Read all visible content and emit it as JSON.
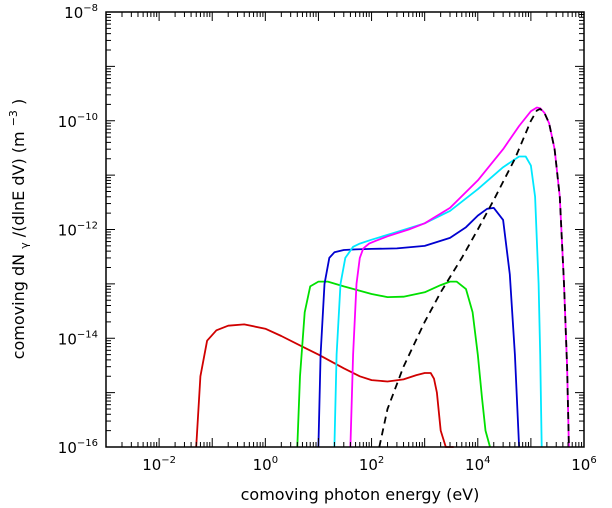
{
  "chart_data": {
    "type": "line",
    "title": "",
    "xlabel": "comoving photon energy (eV)",
    "ylabel": {
      "prefix": "comoving dN",
      "sub": "γ",
      "mid": "/(dlnE dV) (m",
      "sup": "−3",
      "suffix": ")"
    },
    "x_scale": "log",
    "y_scale": "log",
    "xlim": [
      0.001,
      1000000
    ],
    "ylim": [
      1e-16,
      1e-08
    ],
    "x_ticks": [
      {
        "value": 0.01,
        "base": "10",
        "exp": "−2"
      },
      {
        "value": 1,
        "base": "10",
        "exp": "0"
      },
      {
        "value": 100,
        "base": "10",
        "exp": "2"
      },
      {
        "value": 10000,
        "base": "10",
        "exp": "4"
      },
      {
        "value": 1000000,
        "base": "10",
        "exp": "6"
      }
    ],
    "y_ticks": [
      {
        "value": 1e-16,
        "base": "10",
        "exp": "−16"
      },
      {
        "value": 1e-14,
        "base": "10",
        "exp": "−14"
      },
      {
        "value": 1e-12,
        "base": "10",
        "exp": "−12"
      },
      {
        "value": 1e-10,
        "base": "10",
        "exp": "−10"
      },
      {
        "value": 1e-08,
        "base": "10",
        "exp": "−8"
      }
    ],
    "grid": false,
    "series": [
      {
        "color": "#d00000",
        "dash": "solid",
        "x": [
          0.05,
          0.06,
          0.08,
          0.12,
          0.2,
          0.4,
          1,
          2,
          5,
          10,
          30,
          60,
          100,
          200,
          400,
          700,
          1000,
          1300,
          1500,
          1700,
          2000,
          2500,
          3500
        ],
        "y": [
          1e-16,
          2e-15,
          9e-15,
          1.4e-14,
          1.7e-14,
          1.8e-14,
          1.5e-14,
          1.1e-14,
          7e-15,
          5e-15,
          2.8e-15,
          2e-15,
          1.7e-15,
          1.6e-15,
          1.75e-15,
          2.1e-15,
          2.3e-15,
          2.3e-15,
          1.8e-15,
          1e-15,
          2e-16,
          1e-16,
          1e-16
        ]
      },
      {
        "color": "#00e000",
        "dash": "solid",
        "x": [
          4,
          4.5,
          5.5,
          7,
          10,
          15,
          30,
          100,
          200,
          400,
          1000,
          2000,
          3000,
          4000,
          6000,
          8000,
          10000,
          12000,
          14000,
          17000
        ],
        "y": [
          1e-16,
          2e-15,
          3e-14,
          9e-14,
          1.1e-13,
          1.1e-13,
          9e-14,
          6.5e-14,
          5.7e-14,
          5.8e-14,
          7e-14,
          9.5e-14,
          1.1e-13,
          1.1e-13,
          8e-14,
          3e-14,
          5e-15,
          8e-16,
          2e-16,
          1e-16
        ]
      },
      {
        "color": "#0000d0",
        "dash": "solid",
        "x": [
          10,
          11,
          13,
          16,
          20,
          30,
          50,
          100,
          300,
          1000,
          3000,
          6000,
          10000,
          15000,
          20000,
          30000,
          40000,
          50000,
          60000
        ],
        "y": [
          1e-16,
          5e-15,
          1e-13,
          3e-13,
          3.8e-13,
          4.2e-13,
          4.3e-13,
          4.4e-13,
          4.5e-13,
          5e-13,
          7e-13,
          1.1e-12,
          1.8e-12,
          2.4e-12,
          2.5e-12,
          1.5e-12,
          1.5e-13,
          5e-15,
          1e-16
        ]
      },
      {
        "color": "#00e8ff",
        "dash": "solid",
        "x": [
          20,
          22,
          26,
          32,
          45,
          60,
          100,
          300,
          1000,
          3000,
          10000,
          30000,
          60000,
          80000,
          100000,
          120000,
          140000,
          150000,
          160000
        ],
        "y": [
          1e-16,
          5e-15,
          1e-13,
          3e-13,
          4.8e-13,
          5.5e-13,
          6.5e-13,
          9e-13,
          1.3e-12,
          2.2e-12,
          5.5e-12,
          1.4e-11,
          2.2e-11,
          2.2e-11,
          1.5e-11,
          4e-12,
          1e-13,
          5e-15,
          1e-16
        ]
      },
      {
        "color": "#ff00ff",
        "dash": "solid",
        "x": [
          40,
          45,
          52,
          60,
          70,
          90,
          120,
          200,
          500,
          1000,
          3000,
          10000,
          30000,
          60000,
          100000,
          130000,
          150000,
          180000,
          220000,
          280000,
          350000,
          420000,
          480000,
          520000
        ],
        "y": [
          1e-16,
          5e-15,
          1e-13,
          3e-13,
          4.5e-13,
          5.5e-13,
          6.2e-13,
          7.5e-13,
          1e-12,
          1.3e-12,
          2.5e-12,
          8e-12,
          3e-11,
          8e-11,
          1.5e-10,
          1.75e-10,
          1.7e-10,
          1.4e-10,
          9e-11,
          3e-11,
          4e-12,
          1e-13,
          3e-15,
          1e-16
        ]
      },
      {
        "color": "#000000",
        "dash": "dashed",
        "x": [
          140,
          200,
          400,
          1000,
          2000,
          5000,
          10000,
          20000,
          50000,
          100000,
          130000,
          150000,
          180000,
          220000,
          280000,
          350000,
          420000,
          480000,
          520000
        ],
        "y": [
          1e-16,
          5e-16,
          3e-15,
          2e-14,
          7e-14,
          3e-13,
          1e-12,
          3.5e-12,
          2e-11,
          1e-10,
          1.55e-10,
          1.65e-10,
          1.4e-10,
          9e-11,
          3e-11,
          4e-12,
          1e-13,
          3e-15,
          1e-16
        ]
      }
    ]
  }
}
